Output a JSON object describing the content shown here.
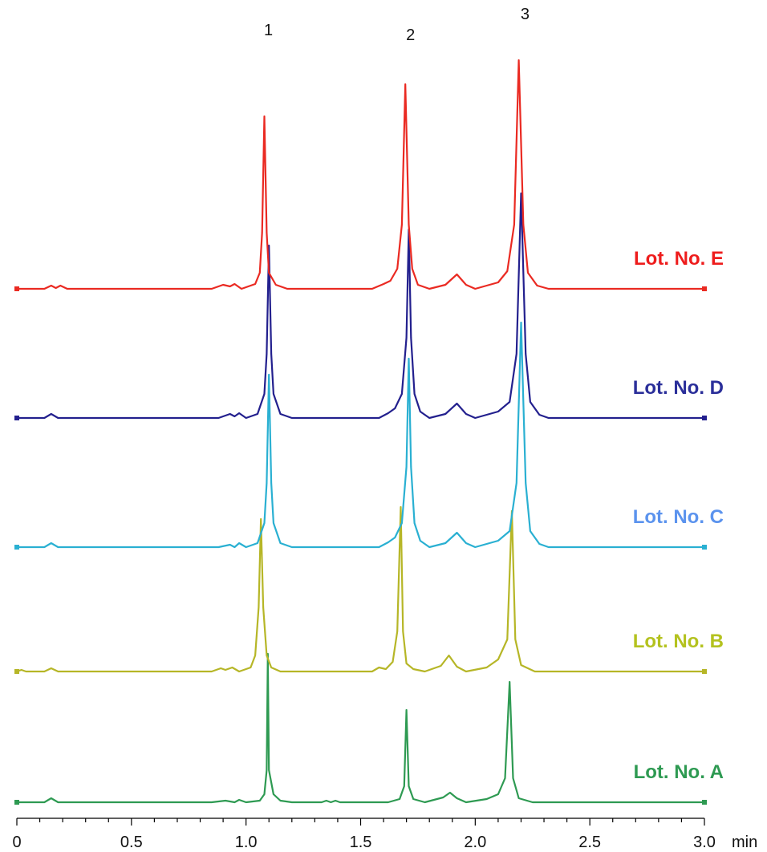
{
  "chart_data": {
    "type": "line",
    "title": "",
    "xlabel": "",
    "ylabel": "",
    "x_unit": "min",
    "xlim": [
      0,
      3.0
    ],
    "x_ticks": [
      "0",
      "0.5",
      "1.0",
      "1.5",
      "2.0",
      "2.5",
      "3.0"
    ],
    "x_tick_values": [
      0,
      0.5,
      1.0,
      1.5,
      2.0,
      2.5,
      3.0
    ],
    "peak_labels": [
      {
        "text": "1",
        "x": 1.08
      },
      {
        "text": "2",
        "x": 1.7
      },
      {
        "text": "3",
        "x": 2.2
      }
    ],
    "grid": false,
    "legend": "labels at right end of each trace",
    "series": [
      {
        "name": "Lot. No. A",
        "color": "#2e9a52",
        "label_color": "#2e9a52",
        "baseline": 0,
        "points": [
          [
            0,
            0
          ],
          [
            0.12,
            0
          ],
          [
            0.15,
            5
          ],
          [
            0.18,
            0
          ],
          [
            0.85,
            0
          ],
          [
            0.91,
            2
          ],
          [
            0.95,
            0
          ],
          [
            0.97,
            3
          ],
          [
            1.0,
            0
          ],
          [
            1.06,
            2
          ],
          [
            1.08,
            10
          ],
          [
            1.09,
            40
          ],
          [
            1.095,
            185
          ],
          [
            1.1,
            40
          ],
          [
            1.12,
            10
          ],
          [
            1.15,
            2
          ],
          [
            1.2,
            0
          ],
          [
            1.33,
            0
          ],
          [
            1.35,
            2
          ],
          [
            1.37,
            0
          ],
          [
            1.39,
            2
          ],
          [
            1.41,
            0
          ],
          [
            1.62,
            0
          ],
          [
            1.67,
            4
          ],
          [
            1.69,
            20
          ],
          [
            1.7,
            115
          ],
          [
            1.71,
            20
          ],
          [
            1.73,
            4
          ],
          [
            1.78,
            0
          ],
          [
            1.86,
            6
          ],
          [
            1.89,
            12
          ],
          [
            1.92,
            5
          ],
          [
            1.96,
            0
          ],
          [
            2.05,
            4
          ],
          [
            2.1,
            10
          ],
          [
            2.13,
            30
          ],
          [
            2.15,
            150
          ],
          [
            2.165,
            30
          ],
          [
            2.19,
            5
          ],
          [
            2.25,
            0
          ],
          [
            3.0,
            0
          ]
        ]
      },
      {
        "name": "Lot. No. B",
        "color": "#b6b627",
        "label_color": "#b4c21f",
        "baseline": 0,
        "points": [
          [
            0,
            0
          ],
          [
            0.02,
            2
          ],
          [
            0.04,
            0
          ],
          [
            0.12,
            0
          ],
          [
            0.15,
            4
          ],
          [
            0.18,
            0
          ],
          [
            0.85,
            0
          ],
          [
            0.89,
            4
          ],
          [
            0.91,
            2
          ],
          [
            0.94,
            5
          ],
          [
            0.97,
            0
          ],
          [
            1.02,
            5
          ],
          [
            1.04,
            20
          ],
          [
            1.055,
            80
          ],
          [
            1.065,
            190
          ],
          [
            1.075,
            80
          ],
          [
            1.09,
            20
          ],
          [
            1.11,
            5
          ],
          [
            1.15,
            0
          ],
          [
            1.55,
            0
          ],
          [
            1.58,
            5
          ],
          [
            1.61,
            3
          ],
          [
            1.64,
            12
          ],
          [
            1.66,
            50
          ],
          [
            1.675,
            205
          ],
          [
            1.685,
            50
          ],
          [
            1.7,
            10
          ],
          [
            1.73,
            3
          ],
          [
            1.78,
            0
          ],
          [
            1.85,
            7
          ],
          [
            1.885,
            20
          ],
          [
            1.92,
            6
          ],
          [
            1.96,
            0
          ],
          [
            2.05,
            5
          ],
          [
            2.1,
            15
          ],
          [
            2.14,
            40
          ],
          [
            2.16,
            200
          ],
          [
            2.175,
            40
          ],
          [
            2.2,
            8
          ],
          [
            2.26,
            0
          ],
          [
            3.0,
            0
          ]
        ]
      },
      {
        "name": "Lot. No. C",
        "color": "#2ab0d2",
        "label_color": "#5b93ee",
        "baseline": 0,
        "points": [
          [
            0,
            0
          ],
          [
            0.12,
            0
          ],
          [
            0.15,
            5
          ],
          [
            0.18,
            0
          ],
          [
            0.88,
            0
          ],
          [
            0.93,
            3
          ],
          [
            0.95,
            0
          ],
          [
            0.97,
            5
          ],
          [
            1.0,
            0
          ],
          [
            1.05,
            5
          ],
          [
            1.08,
            30
          ],
          [
            1.09,
            80
          ],
          [
            1.1,
            215
          ],
          [
            1.11,
            80
          ],
          [
            1.12,
            30
          ],
          [
            1.15,
            5
          ],
          [
            1.2,
            0
          ],
          [
            1.58,
            0
          ],
          [
            1.62,
            6
          ],
          [
            1.65,
            12
          ],
          [
            1.68,
            30
          ],
          [
            1.7,
            100
          ],
          [
            1.71,
            235
          ],
          [
            1.72,
            100
          ],
          [
            1.735,
            30
          ],
          [
            1.76,
            8
          ],
          [
            1.8,
            0
          ],
          [
            1.87,
            5
          ],
          [
            1.92,
            18
          ],
          [
            1.96,
            5
          ],
          [
            2.0,
            0
          ],
          [
            2.1,
            8
          ],
          [
            2.15,
            20
          ],
          [
            2.18,
            80
          ],
          [
            2.2,
            280
          ],
          [
            2.22,
            80
          ],
          [
            2.24,
            20
          ],
          [
            2.28,
            4
          ],
          [
            2.32,
            0
          ],
          [
            3.0,
            0
          ]
        ]
      },
      {
        "name": "Lot. No. D",
        "color": "#23208e",
        "label_color": "#2b2f9a",
        "baseline": 0,
        "points": [
          [
            0,
            0
          ],
          [
            0.12,
            0
          ],
          [
            0.15,
            5
          ],
          [
            0.18,
            0
          ],
          [
            0.88,
            0
          ],
          [
            0.93,
            5
          ],
          [
            0.95,
            2
          ],
          [
            0.97,
            6
          ],
          [
            1.0,
            0
          ],
          [
            1.05,
            5
          ],
          [
            1.08,
            30
          ],
          [
            1.09,
            80
          ],
          [
            1.1,
            215
          ],
          [
            1.11,
            80
          ],
          [
            1.12,
            30
          ],
          [
            1.15,
            5
          ],
          [
            1.2,
            0
          ],
          [
            1.58,
            0
          ],
          [
            1.62,
            6
          ],
          [
            1.65,
            12
          ],
          [
            1.68,
            30
          ],
          [
            1.7,
            100
          ],
          [
            1.71,
            235
          ],
          [
            1.72,
            100
          ],
          [
            1.735,
            30
          ],
          [
            1.76,
            8
          ],
          [
            1.8,
            0
          ],
          [
            1.87,
            5
          ],
          [
            1.92,
            18
          ],
          [
            1.96,
            5
          ],
          [
            2.0,
            0
          ],
          [
            2.1,
            8
          ],
          [
            2.15,
            20
          ],
          [
            2.18,
            80
          ],
          [
            2.2,
            280
          ],
          [
            2.22,
            80
          ],
          [
            2.24,
            20
          ],
          [
            2.28,
            4
          ],
          [
            2.32,
            0
          ],
          [
            3.0,
            0
          ]
        ]
      },
      {
        "name": "Lot. No. E",
        "color": "#ea2a22",
        "label_color": "#ee1c1c",
        "baseline": 0,
        "points": [
          [
            0,
            0
          ],
          [
            0.12,
            0
          ],
          [
            0.15,
            4
          ],
          [
            0.17,
            1
          ],
          [
            0.19,
            4
          ],
          [
            0.22,
            0
          ],
          [
            0.85,
            0
          ],
          [
            0.9,
            5
          ],
          [
            0.93,
            3
          ],
          [
            0.95,
            6
          ],
          [
            0.98,
            0
          ],
          [
            1.04,
            6
          ],
          [
            1.06,
            20
          ],
          [
            1.07,
            70
          ],
          [
            1.08,
            215
          ],
          [
            1.09,
            70
          ],
          [
            1.1,
            20
          ],
          [
            1.13,
            5
          ],
          [
            1.18,
            0
          ],
          [
            1.55,
            0
          ],
          [
            1.6,
            6
          ],
          [
            1.63,
            10
          ],
          [
            1.66,
            25
          ],
          [
            1.68,
            80
          ],
          [
            1.695,
            255
          ],
          [
            1.71,
            80
          ],
          [
            1.725,
            25
          ],
          [
            1.75,
            5
          ],
          [
            1.8,
            0
          ],
          [
            1.87,
            5
          ],
          [
            1.92,
            18
          ],
          [
            1.96,
            5
          ],
          [
            2.0,
            0
          ],
          [
            2.1,
            8
          ],
          [
            2.14,
            22
          ],
          [
            2.17,
            80
          ],
          [
            2.19,
            285
          ],
          [
            2.21,
            80
          ],
          [
            2.23,
            20
          ],
          [
            2.27,
            4
          ],
          [
            2.32,
            0
          ],
          [
            3.0,
            0
          ]
        ]
      }
    ]
  }
}
